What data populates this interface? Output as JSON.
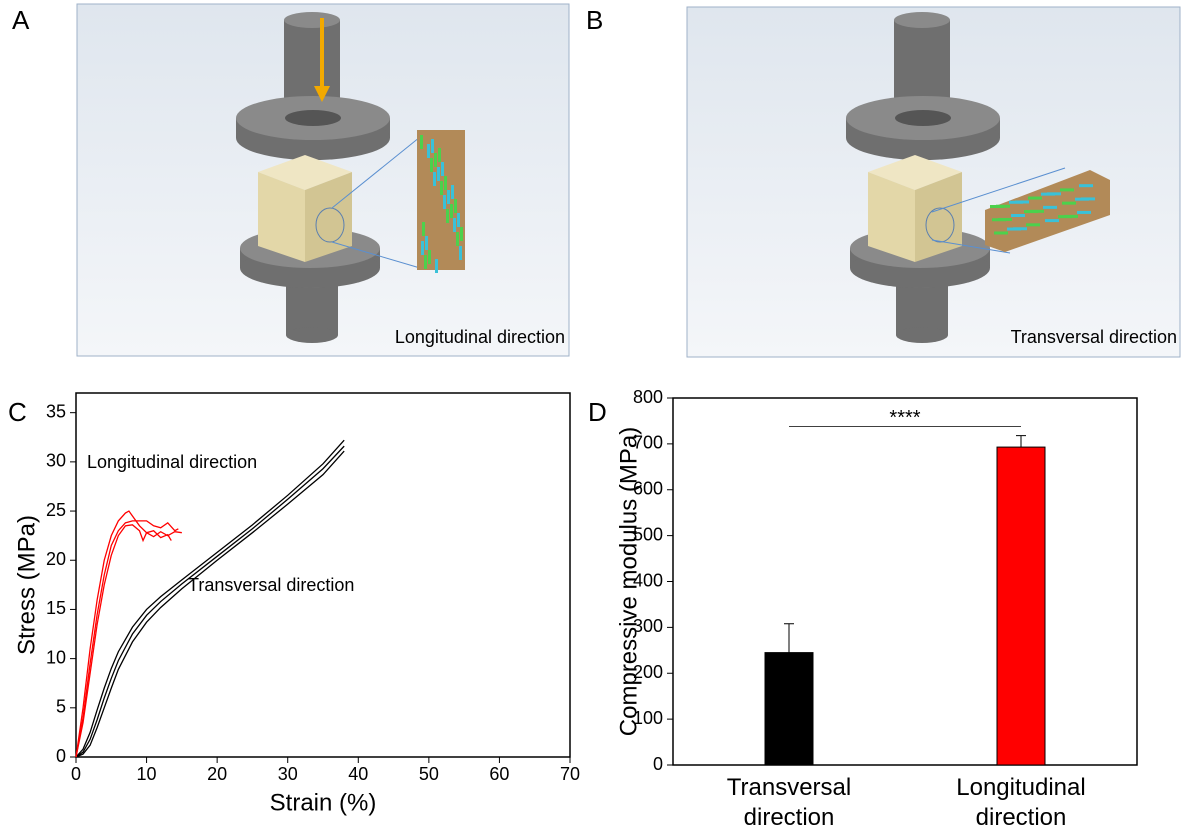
{
  "panels": {
    "a": {
      "label": "A",
      "caption": "Longitudinal direction"
    },
    "b": {
      "label": "B",
      "caption": "Transversal direction"
    }
  },
  "chart_data": [
    {
      "type": "line",
      "label": "C",
      "xlabel": "Strain (%)",
      "ylabel": "Stress (MPa)",
      "xlim": [
        0,
        70
      ],
      "ylim": [
        0,
        37
      ],
      "xticks": [
        0,
        10,
        20,
        30,
        40,
        50,
        60,
        70
      ],
      "yticks": [
        0,
        5,
        10,
        15,
        20,
        25,
        30,
        35
      ],
      "annotations": [
        "Longitudinal direction",
        "Transversal direction"
      ],
      "series": [
        {
          "color": "#000000",
          "x": [
            0,
            1,
            2,
            3,
            4,
            5,
            6,
            8,
            10,
            12,
            15,
            20,
            25,
            30,
            35,
            38
          ],
          "values": [
            0,
            0.8,
            2.5,
            4.8,
            7,
            9,
            10.7,
            13.2,
            15,
            16.3,
            18,
            20.8,
            23.6,
            26.6,
            29.8,
            32.2
          ]
        },
        {
          "color": "#000000",
          "x": [
            0,
            1,
            2,
            3,
            4,
            5,
            6,
            8,
            10,
            12,
            15,
            20,
            25,
            30,
            35,
            38
          ],
          "values": [
            0,
            0.5,
            1.8,
            3.8,
            6,
            8,
            9.8,
            12.5,
            14.4,
            15.8,
            17.6,
            20.4,
            23.2,
            26.2,
            29.3,
            31.6
          ]
        },
        {
          "color": "#000000",
          "x": [
            0,
            1,
            2,
            3,
            4,
            5,
            6,
            8,
            10,
            12,
            15,
            20,
            25,
            30,
            35,
            38
          ],
          "values": [
            0,
            0.3,
            1.2,
            3,
            5,
            7,
            8.9,
            11.7,
            13.7,
            15.2,
            17.1,
            20,
            22.8,
            25.7,
            28.7,
            31.1
          ]
        },
        {
          "color": "#ff0000",
          "x": [
            0,
            1,
            2,
            3,
            4,
            5,
            6,
            7,
            7.5,
            8,
            9,
            10,
            11,
            12,
            13,
            14,
            15
          ],
          "values": [
            0,
            5,
            11,
            16,
            20,
            22.5,
            24,
            24.8,
            25,
            24.5,
            23.5,
            22.8,
            22.4,
            22.9,
            22.5,
            22.9,
            22.8
          ]
        },
        {
          "color": "#ff0000",
          "x": [
            0,
            1,
            2,
            3,
            4,
            5,
            6,
            7,
            8,
            9,
            10,
            11,
            12,
            13,
            14,
            14.5
          ],
          "values": [
            0,
            4,
            9.5,
            14.5,
            18.5,
            21.5,
            23,
            23.8,
            24,
            24,
            24,
            23.5,
            23.3,
            23.8,
            23,
            23.2
          ]
        },
        {
          "color": "#ff0000",
          "x": [
            0,
            1,
            2,
            3,
            4,
            5,
            6,
            7,
            8,
            9,
            9.5,
            10,
            11,
            12,
            13,
            13.5
          ],
          "values": [
            0,
            3.5,
            8.5,
            13.5,
            17.5,
            20.5,
            22.5,
            23.5,
            23.6,
            23,
            22,
            22.8,
            23,
            22.3,
            22.6,
            22
          ]
        }
      ]
    },
    {
      "type": "bar",
      "label": "D",
      "ylabel": "Compressive modulus (MPa)",
      "categories": [
        "Transversal direction",
        "Longitudinal direction"
      ],
      "values": [
        245,
        693
      ],
      "errors": [
        63,
        25
      ],
      "colors": [
        "#000000",
        "#ff0000"
      ],
      "ylim": [
        0,
        800
      ],
      "yticks": [
        0,
        100,
        200,
        300,
        400,
        500,
        600,
        700,
        800
      ],
      "annotation": "****"
    }
  ]
}
